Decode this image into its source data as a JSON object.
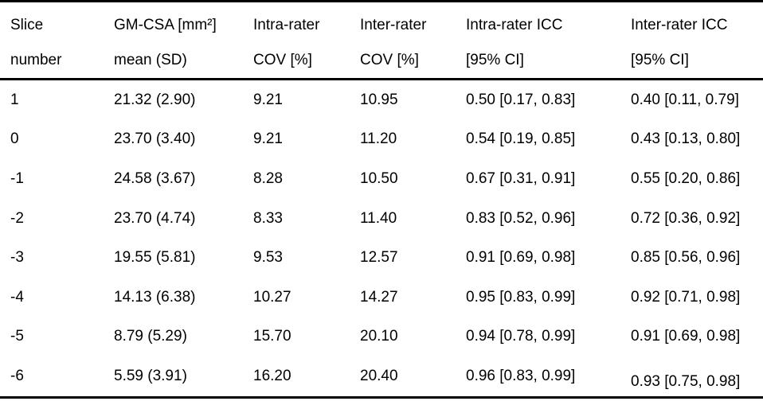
{
  "table": {
    "columns": [
      {
        "line1": "Slice",
        "line2": "number"
      },
      {
        "line1": "GM-CSA [mm²]",
        "line2": "mean (SD)"
      },
      {
        "line1": "Intra-rater",
        "line2": "COV [%]"
      },
      {
        "line1": "Inter-rater",
        "line2": "COV [%]"
      },
      {
        "line1": "Intra-rater ICC",
        "line2": "[95% CI]"
      },
      {
        "line1": "Inter-rater ICC",
        "line2": "[95% CI]"
      }
    ],
    "rows": [
      {
        "slice": "1",
        "gm_csa": "21.32 (2.90)",
        "intra_cov": "9.21",
        "inter_cov": "10.95",
        "intra_icc": "0.50 [0.17, 0.83]",
        "inter_icc": "0.40 [0.11, 0.79]"
      },
      {
        "slice": "0",
        "gm_csa": "23.70 (3.40)",
        "intra_cov": "9.21",
        "inter_cov": "11.20",
        "intra_icc": "0.54 [0.19, 0.85]",
        "inter_icc": "0.43 [0.13, 0.80]"
      },
      {
        "slice": "-1",
        "gm_csa": "24.58 (3.67)",
        "intra_cov": "8.28",
        "inter_cov": "10.50",
        "intra_icc": "0.67 [0.31, 0.91]",
        "inter_icc": "0.55 [0.20, 0.86]"
      },
      {
        "slice": "-2",
        "gm_csa": "23.70 (4.74)",
        "intra_cov": "8.33",
        "inter_cov": "11.40",
        "intra_icc": "0.83 [0.52, 0.96]",
        "inter_icc": "0.72 [0.36, 0.92]"
      },
      {
        "slice": "-3",
        "gm_csa": "19.55 (5.81)",
        "intra_cov": "9.53",
        "inter_cov": "12.57",
        "intra_icc": "0.91 [0.69, 0.98]",
        "inter_icc": "0.85 [0.56, 0.96]"
      },
      {
        "slice": "-4",
        "gm_csa": "14.13 (6.38)",
        "intra_cov": "10.27",
        "inter_cov": "14.27",
        "intra_icc": "0.95 [0.83, 0.99]",
        "inter_icc": "0.92 [0.71, 0.98]"
      },
      {
        "slice": "-5",
        "gm_csa": "8.79 (5.29)",
        "intra_cov": "15.70",
        "inter_cov": "20.10",
        "intra_icc": "0.94 [0.78, 0.99]",
        "inter_icc": "0.91 [0.69, 0.98]"
      },
      {
        "slice": "-6",
        "gm_csa": "5.59 (3.91)",
        "intra_cov": "16.20",
        "inter_cov": "20.40",
        "intra_icc": "0.96 [0.83, 0.99]",
        "inter_icc": "0.93 [0.75, 0.98]"
      }
    ]
  },
  "colors": {
    "text": "#000000",
    "border": "#000000",
    "background": "#ffffff"
  }
}
